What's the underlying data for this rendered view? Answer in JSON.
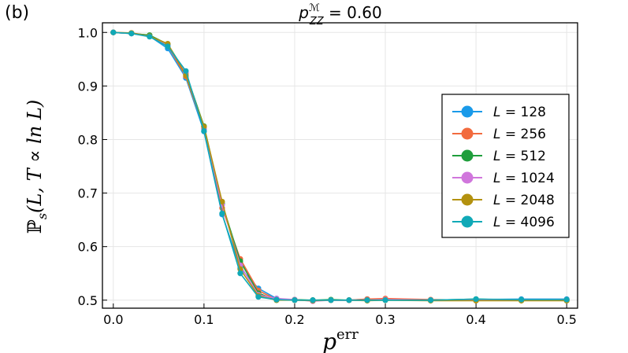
{
  "panel_label": "(b)",
  "chart_data": {
    "type": "line",
    "title": {
      "base": "p",
      "sup": "ℳ",
      "sub": "ZZ",
      "eq": " = 0.60"
    },
    "xlabel": {
      "base": "p",
      "sup": "err"
    },
    "ylabel": {
      "pre": "ℙ",
      "sub": "s",
      "post": "(L, T ∝ ln L)"
    },
    "xlim": [
      -0.012,
      0.512
    ],
    "ylim": [
      0.485,
      1.018
    ],
    "xticks": [
      0.0,
      0.1,
      0.2,
      0.3,
      0.4,
      0.5
    ],
    "xtick_labels": [
      "0.0",
      "0.1",
      "0.2",
      "0.3",
      "0.4",
      "0.5"
    ],
    "yticks": [
      0.5,
      0.6,
      0.7,
      0.8,
      0.9,
      1.0
    ],
    "ytick_labels": [
      "0.5",
      "0.6",
      "0.7",
      "0.8",
      "0.9",
      "1.0"
    ],
    "grid": true,
    "legend_position": "center-right",
    "x": [
      0.0,
      0.02,
      0.04,
      0.06,
      0.08,
      0.1,
      0.12,
      0.14,
      0.16,
      0.18,
      0.2,
      0.22,
      0.24,
      0.26,
      0.28,
      0.3,
      0.35,
      0.4,
      0.45,
      0.5
    ],
    "series": [
      {
        "name": "L = 128",
        "label_pre": "L",
        "label_val": " = 128",
        "color": "#1a9ae9",
        "values": [
          1.0,
          0.998,
          0.993,
          0.97,
          0.915,
          0.815,
          0.66,
          0.56,
          0.522,
          0.503,
          0.5,
          0.5,
          0.5,
          0.5,
          0.502,
          0.501,
          0.5,
          0.501,
          0.502,
          0.502
        ]
      },
      {
        "name": "L = 256",
        "label_pre": "L",
        "label_val": " = 256",
        "color": "#f26b3e",
        "values": [
          1.0,
          0.999,
          0.994,
          0.975,
          0.918,
          0.82,
          0.672,
          0.577,
          0.518,
          0.501,
          0.5,
          0.5,
          0.5,
          0.5,
          0.502,
          0.503,
          0.501,
          0.5,
          0.5,
          0.501
        ]
      },
      {
        "name": "L = 512",
        "label_pre": "L",
        "label_val": " = 512",
        "color": "#1f9e3c",
        "values": [
          1.0,
          0.998,
          0.995,
          0.978,
          0.924,
          0.825,
          0.68,
          0.573,
          0.513,
          0.5,
          0.501,
          0.5,
          0.501,
          0.5,
          0.5,
          0.5,
          0.5,
          0.502,
          0.5,
          0.5
        ]
      },
      {
        "name": "L = 1024",
        "label_pre": "L",
        "label_val": " = 1024",
        "color": "#d076dc",
        "values": [
          1.0,
          0.998,
          0.993,
          0.975,
          0.925,
          0.82,
          0.678,
          0.565,
          0.51,
          0.503,
          0.501,
          0.498,
          0.5,
          0.5,
          0.5,
          0.501,
          0.5,
          0.5,
          0.501,
          0.501
        ]
      },
      {
        "name": "L = 2048",
        "label_pre": "L",
        "label_val": " = 2048",
        "color": "#b3910f",
        "values": [
          1.0,
          0.999,
          0.993,
          0.979,
          0.92,
          0.824,
          0.684,
          0.558,
          0.508,
          0.5,
          0.5,
          0.499,
          0.5,
          0.5,
          0.499,
          0.5,
          0.499,
          0.499,
          0.499,
          0.499
        ]
      },
      {
        "name": "L = 4096",
        "label_pre": "L",
        "label_val": " = 4096",
        "color": "#10a9b7",
        "values": [
          1.0,
          0.998,
          0.992,
          0.974,
          0.928,
          0.816,
          0.662,
          0.55,
          0.506,
          0.501,
          0.5,
          0.5,
          0.5,
          0.5,
          0.5,
          0.5,
          0.5,
          0.502,
          0.501,
          0.501
        ]
      }
    ]
  }
}
